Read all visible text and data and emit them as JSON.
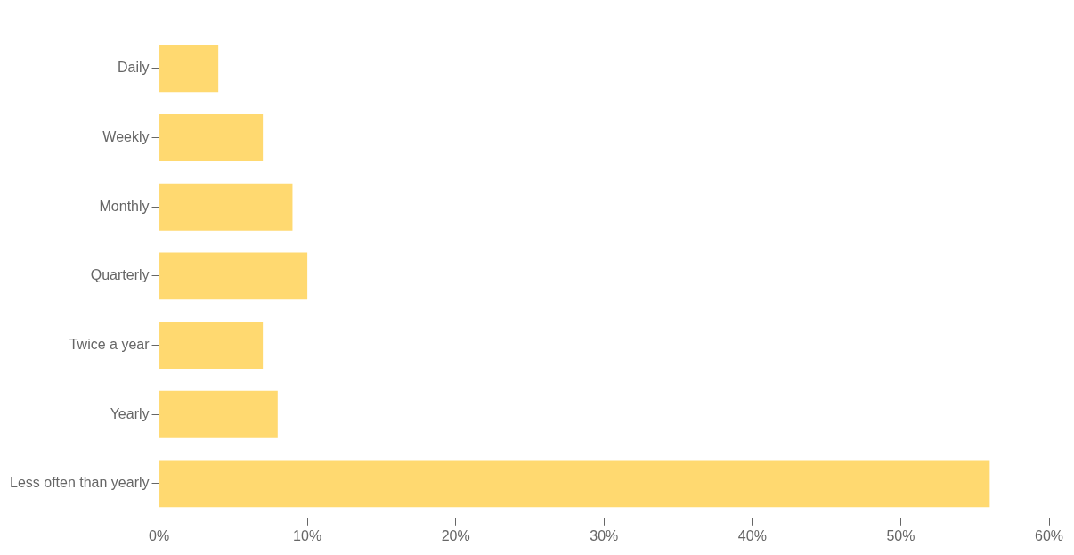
{
  "chart_data": {
    "type": "bar",
    "orientation": "horizontal",
    "categories": [
      "Daily",
      "Weekly",
      "Monthly",
      "Quarterly",
      "Twice a year",
      "Yearly",
      "Less often than yearly"
    ],
    "values": [
      4,
      7,
      9,
      10,
      7,
      8,
      56
    ],
    "color": "#ffd970",
    "xlim": [
      0,
      60
    ],
    "xticks": [
      {
        "value": 0,
        "label": "0%"
      },
      {
        "value": 10,
        "label": "10%"
      },
      {
        "value": 20,
        "label": "20%"
      },
      {
        "value": 30,
        "label": "30%"
      },
      {
        "value": 40,
        "label": "40%"
      },
      {
        "value": 50,
        "label": "50%"
      },
      {
        "value": 60,
        "label": "60%"
      }
    ],
    "grid": false,
    "legend": false
  }
}
